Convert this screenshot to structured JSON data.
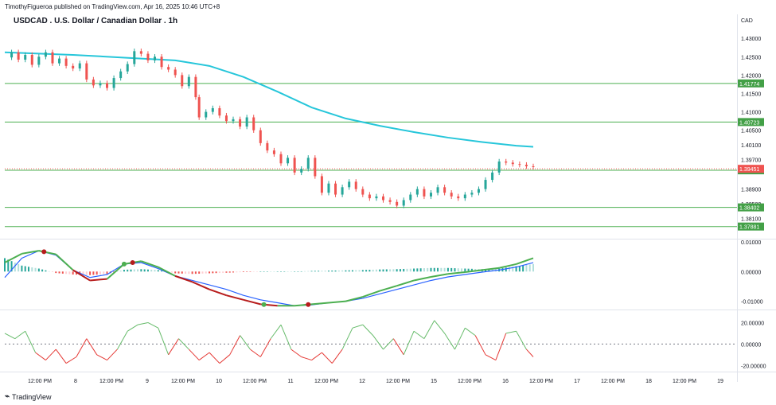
{
  "header": {
    "attribution": "TimothyFigueroa published on TradingView.com, Apr 16, 2025 10:46 UTC+8",
    "symbol_title": "USDCAD . U.S. Dollar / Canadian Dollar . 1h",
    "currency": "CAD"
  },
  "footer": {
    "brand": "TradingView",
    "logo": "tradingview-logo-icon"
  },
  "colors": {
    "up": "#26a69a",
    "down": "#ef5350",
    "ma": "#26c6da",
    "hline": "#4caf50",
    "macd": "#2962ff",
    "signal_up": "#4caf50",
    "signal_down": "#b71c1c",
    "hist_up": "#26a69a",
    "hist_up_light": "#b2dfdb",
    "hist_down": "#ef5350",
    "hist_down_light": "#ffcdd2",
    "osc_up": "#66bb6a",
    "osc_down": "#e53935",
    "last_price": "#ef5350"
  },
  "chart_data": [
    {
      "type": "candlestick",
      "title": "USDCAD . U.S. Dollar / Canadian Dollar . 1h",
      "ylim": [
        1.3755,
        1.4335
      ],
      "price_ticks": [
        "1.43000",
        "1.42500",
        "1.42000",
        "1.41500",
        "1.41000",
        "1.40500",
        "1.40100",
        "1.39700",
        "1.38900",
        "1.38500",
        "1.38100"
      ],
      "x_ticks": [
        "12:00 PM",
        "8",
        "12:00 PM",
        "9",
        "12:00 PM",
        "10",
        "12:00 PM",
        "11",
        "12:00 PM",
        "12",
        "12:00 PM",
        "15",
        "12:00 PM",
        "16",
        "12:00 PM",
        "17",
        "12:00 PM",
        "18",
        "12:00 PM",
        "19"
      ],
      "close_path": [
        [
          0,
          1.4248
        ],
        [
          4,
          1.4262
        ],
        [
          8,
          1.4242
        ],
        [
          12,
          1.4255
        ],
        [
          16,
          1.4228
        ],
        [
          20,
          1.425
        ],
        [
          24,
          1.4262
        ],
        [
          28,
          1.4232
        ],
        [
          32,
          1.4245
        ],
        [
          36,
          1.4225
        ],
        [
          40,
          1.4218
        ],
        [
          44,
          1.4232
        ],
        [
          48,
          1.4188
        ],
        [
          52,
          1.4172
        ],
        [
          56,
          1.4178
        ],
        [
          60,
          1.4165
        ],
        [
          64,
          1.4192
        ],
        [
          68,
          1.421
        ],
        [
          72,
          1.423
        ],
        [
          76,
          1.4265
        ],
        [
          80,
          1.4258
        ],
        [
          84,
          1.424
        ],
        [
          88,
          1.425
        ],
        [
          92,
          1.4222
        ],
        [
          96,
          1.4215
        ],
        [
          100,
          1.42
        ],
        [
          104,
          1.417
        ],
        [
          108,
          1.4195
        ],
        [
          112,
          1.414
        ],
        [
          114,
          1.4085
        ],
        [
          118,
          1.41
        ],
        [
          122,
          1.411
        ],
        [
          126,
          1.409
        ],
        [
          130,
          1.4075
        ],
        [
          134,
          1.408
        ],
        [
          138,
          1.406
        ],
        [
          142,
          1.4085
        ],
        [
          146,
          1.405
        ],
        [
          150,
          1.4015
        ],
        [
          154,
          1.3995
        ],
        [
          158,
          1.3985
        ],
        [
          162,
          1.396
        ],
        [
          166,
          1.3975
        ],
        [
          170,
          1.3935
        ],
        [
          174,
          1.3945
        ],
        [
          178,
          1.3975
        ],
        [
          182,
          1.3925
        ],
        [
          186,
          1.388
        ],
        [
          190,
          1.3905
        ],
        [
          194,
          1.3875
        ],
        [
          198,
          1.3895
        ],
        [
          202,
          1.391
        ],
        [
          206,
          1.389
        ],
        [
          210,
          1.3875
        ],
        [
          214,
          1.3865
        ],
        [
          218,
          1.387
        ],
        [
          222,
          1.386
        ],
        [
          226,
          1.3855
        ],
        [
          230,
          1.3845
        ],
        [
          234,
          1.386
        ],
        [
          238,
          1.3875
        ],
        [
          242,
          1.389
        ],
        [
          246,
          1.387
        ],
        [
          250,
          1.388
        ],
        [
          254,
          1.3895
        ],
        [
          258,
          1.388
        ],
        [
          262,
          1.387
        ],
        [
          266,
          1.3865
        ],
        [
          270,
          1.3875
        ],
        [
          274,
          1.388
        ],
        [
          278,
          1.389
        ],
        [
          282,
          1.3915
        ],
        [
          286,
          1.3935
        ],
        [
          290,
          1.3965
        ],
        [
          294,
          1.3962
        ],
        [
          298,
          1.3958
        ],
        [
          302,
          1.3956
        ],
        [
          306,
          1.3952
        ],
        [
          310,
          1.395
        ]
      ],
      "moving_average": [
        [
          0,
          1.4262
        ],
        [
          40,
          1.4255
        ],
        [
          80,
          1.4245
        ],
        [
          100,
          1.424
        ],
        [
          120,
          1.4225
        ],
        [
          140,
          1.4195
        ],
        [
          160,
          1.4155
        ],
        [
          180,
          1.4112
        ],
        [
          200,
          1.4082
        ],
        [
          220,
          1.4062
        ],
        [
          240,
          1.4045
        ],
        [
          260,
          1.403
        ],
        [
          280,
          1.4018
        ],
        [
          300,
          1.4008
        ],
        [
          310,
          1.4005
        ]
      ],
      "horizontal_levels": [
        "1.41774",
        "1.40723",
        "1.39410",
        "1.38402",
        "1.37881"
      ],
      "last_price": "1.39451"
    },
    {
      "type": "line",
      "name": "macd-panel",
      "ylim": [
        -0.0125,
        0.0105
      ],
      "ticks": [
        "0.01000",
        "0.00000",
        "-0.01000"
      ],
      "x": [
        0,
        10,
        20,
        30,
        40,
        50,
        60,
        70,
        80,
        90,
        100,
        110,
        120,
        130,
        140,
        150,
        160,
        170,
        180,
        190,
        200,
        210,
        220,
        230,
        240,
        250,
        260,
        270,
        280,
        290,
        300,
        310
      ],
      "macd_values": [
        -0.002,
        0.0045,
        0.007,
        0.0055,
        0.0005,
        -0.002,
        -0.001,
        0.0025,
        0.003,
        0.001,
        -0.0015,
        -0.003,
        -0.0045,
        -0.006,
        -0.008,
        -0.0095,
        -0.0105,
        -0.0115,
        -0.0112,
        -0.0105,
        -0.01,
        -0.009,
        -0.0075,
        -0.006,
        -0.0045,
        -0.003,
        -0.0018,
        -0.001,
        -0.0002,
        0.0005,
        0.0015,
        0.003
      ],
      "signal_values": [
        0.003,
        0.006,
        0.007,
        0.0058,
        0.0005,
        -0.003,
        -0.0025,
        0.0025,
        0.0035,
        0.0015,
        -0.0015,
        -0.0035,
        -0.006,
        -0.008,
        -0.0095,
        -0.011,
        -0.0115,
        -0.0115,
        -0.011,
        -0.0105,
        -0.01,
        -0.0085,
        -0.0065,
        -0.0048,
        -0.003,
        -0.0018,
        -0.0008,
        -0.0002,
        0.0005,
        0.0012,
        0.0025,
        0.0045
      ],
      "hist_values": [
        0.0045,
        0.002,
        0.001,
        -0.0005,
        -0.001,
        -0.0012,
        -0.0008,
        0.0006,
        0.0008,
        0.0005,
        -0.0006,
        -0.0008,
        -0.0006,
        -0.0004,
        -0.0002,
        0.0,
        0.0,
        0.0,
        0.0002,
        0.0003,
        0.0004,
        0.0005,
        0.0007,
        0.0008,
        0.001,
        0.0012,
        0.0012,
        0.001,
        0.0008,
        0.001,
        0.0018,
        0.0025
      ],
      "cross_points": [
        [
          23,
          "down"
        ],
        [
          70,
          "up"
        ],
        [
          75,
          "down"
        ],
        [
          152,
          "up"
        ],
        [
          178,
          "down"
        ]
      ]
    },
    {
      "type": "line",
      "name": "oscillator-panel",
      "ylim": [
        -25,
        30
      ],
      "ticks": [
        "20.00000",
        "0.00000",
        "-20.00000"
      ],
      "x": [
        0,
        6,
        12,
        18,
        24,
        30,
        36,
        42,
        48,
        54,
        60,
        66,
        72,
        78,
        84,
        90,
        96,
        102,
        108,
        114,
        120,
        126,
        132,
        138,
        144,
        150,
        156,
        162,
        168,
        174,
        180,
        186,
        192,
        198,
        204,
        210,
        216,
        222,
        228,
        234,
        240,
        246,
        252,
        258,
        264,
        270,
        276,
        282,
        288,
        294,
        300,
        306,
        310
      ],
      "values": [
        10,
        5,
        12,
        -8,
        -15,
        -5,
        -18,
        -12,
        5,
        -10,
        -15,
        -5,
        12,
        18,
        20,
        15,
        -10,
        5,
        -5,
        -15,
        -8,
        -18,
        -10,
        8,
        -5,
        -12,
        5,
        18,
        -5,
        -12,
        -15,
        -8,
        -18,
        -5,
        15,
        18,
        8,
        -5,
        5,
        -10,
        12,
        5,
        22,
        10,
        -5,
        15,
        8,
        -10,
        -15,
        10,
        12,
        -5,
        -12
      ]
    }
  ]
}
